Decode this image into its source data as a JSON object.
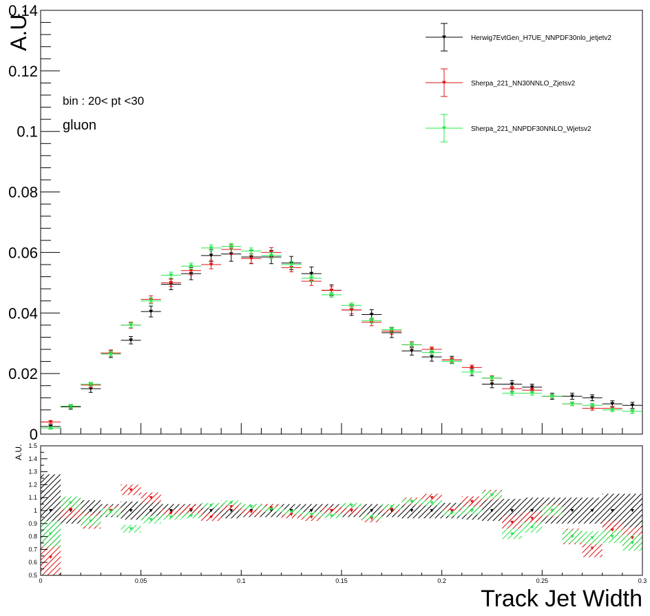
{
  "chart_data": [
    {
      "type": "scatter",
      "title": "",
      "xlabel": "",
      "ylabel": "A.U.",
      "xlim": [
        0,
        0.3
      ],
      "ylim": [
        0,
        0.14
      ],
      "yticks": [
        0.02,
        0.04,
        0.06,
        0.08,
        0.1,
        0.12,
        0.14
      ],
      "ytick_labels": [
        "0.02",
        "0.04",
        "0.06",
        "0.08",
        "0.1",
        "0.12",
        "0.14"
      ],
      "yzero_label": "0",
      "grid": false,
      "legend_placement": "top-right",
      "annotations": [
        "bin : 20< pt <30",
        "gluon"
      ],
      "x_bin_centers": [
        0.005,
        0.015,
        0.025,
        0.035,
        0.045,
        0.055,
        0.065,
        0.075,
        0.085,
        0.095,
        0.105,
        0.115,
        0.125,
        0.135,
        0.145,
        0.155,
        0.165,
        0.175,
        0.185,
        0.195,
        0.205,
        0.215,
        0.225,
        0.235,
        0.245,
        0.255,
        0.265,
        0.275,
        0.285,
        0.295
      ],
      "bin_half_width": 0.005,
      "series": [
        {
          "name": "Herwig7EvtGen_H7UE_NNPDF30nlo_jetjetv2",
          "color": "#000000",
          "values": [
            0.0025,
            0.009,
            0.015,
            0.0265,
            0.031,
            0.0405,
            0.0495,
            0.053,
            0.059,
            0.0595,
            0.0585,
            0.0585,
            0.0565,
            0.053,
            0.0475,
            0.041,
            0.0395,
            0.0335,
            0.0275,
            0.0255,
            0.0245,
            0.0205,
            0.0165,
            0.0165,
            0.0155,
            0.0125,
            0.0125,
            0.012,
            0.01,
            0.0095
          ],
          "errors": [
            0.0006,
            0.0008,
            0.0012,
            0.0012,
            0.0012,
            0.0018,
            0.0018,
            0.002,
            0.002,
            0.0024,
            0.0022,
            0.0022,
            0.0022,
            0.0022,
            0.0018,
            0.0018,
            0.0016,
            0.0016,
            0.0014,
            0.0014,
            0.0012,
            0.0012,
            0.0012,
            0.0012,
            0.001,
            0.001,
            0.001,
            0.001,
            0.001,
            0.001
          ]
        },
        {
          "name": "Sherpa_221_NN30NNLO_Zjetsv2",
          "color": "#e01010",
          "values": [
            0.004,
            0.0092,
            0.0162,
            0.0268,
            0.036,
            0.0445,
            0.05,
            0.054,
            0.056,
            0.061,
            0.058,
            0.06,
            0.055,
            0.0505,
            0.0475,
            0.041,
            0.037,
            0.034,
            0.0295,
            0.028,
            0.0245,
            0.022,
            0.0185,
            0.015,
            0.0145,
            0.0125,
            0.01,
            0.0085,
            0.0085,
            0.0075
          ],
          "errors": [
            0.0005,
            0.0006,
            0.0008,
            0.001,
            0.001,
            0.0012,
            0.0012,
            0.0014,
            0.0014,
            0.0016,
            0.0016,
            0.0016,
            0.0014,
            0.0014,
            0.0012,
            0.0012,
            0.0012,
            0.001,
            0.001,
            0.0008,
            0.0008,
            0.0008,
            0.0008,
            0.0008,
            0.0006,
            0.0006,
            0.0006,
            0.0006,
            0.0006,
            0.0006
          ]
        },
        {
          "name": "Sherpa_221_NNPDF30NNLO_Wjetsv2",
          "color": "#22e84a",
          "values": [
            0.002,
            0.0092,
            0.0165,
            0.0265,
            0.036,
            0.044,
            0.0525,
            0.0555,
            0.0615,
            0.062,
            0.0605,
            0.059,
            0.056,
            0.0515,
            0.046,
            0.0425,
            0.0375,
            0.0345,
            0.0295,
            0.027,
            0.024,
            0.0205,
            0.0185,
            0.0135,
            0.0135,
            0.0125,
            0.01,
            0.0095,
            0.008,
            0.0075
          ],
          "errors": [
            0.0004,
            0.0006,
            0.0006,
            0.0008,
            0.0008,
            0.001,
            0.001,
            0.001,
            0.001,
            0.001,
            0.001,
            0.001,
            0.001,
            0.001,
            0.0008,
            0.0008,
            0.0008,
            0.0008,
            0.0008,
            0.0008,
            0.0006,
            0.0006,
            0.0006,
            0.0006,
            0.0006,
            0.0006,
            0.0006,
            0.0006,
            0.0006,
            0.0006
          ]
        }
      ]
    },
    {
      "type": "scatter",
      "title": "",
      "xlabel": "Track Jet Width",
      "ylabel": "A.U.",
      "xlim": [
        0,
        0.3
      ],
      "ylim": [
        0.5,
        1.5
      ],
      "xticks": [
        0,
        0.05,
        0.1,
        0.15,
        0.2,
        0.25,
        0.3
      ],
      "xtick_labels": [
        "0",
        "0.05",
        "0.1",
        "0.15",
        "0.2",
        "0.25",
        "0.3"
      ],
      "yticks": [
        0.5,
        0.6,
        0.7,
        0.8,
        0.9,
        1,
        1.1,
        1.2,
        1.3,
        1.4,
        1.5
      ],
      "ytick_labels": [
        "0.5",
        "0.6",
        "0.7",
        "0.8",
        "0.9",
        "1",
        "1.1",
        "1.2",
        "1.3",
        "1.4",
        "1.5"
      ],
      "grid": false,
      "series": [
        {
          "name": "Herwig7EvtGen_H7UE_NNPDF30nlo_jetjetv2",
          "color": "#000000",
          "values": [
            1,
            1,
            1,
            1,
            1,
            1,
            1,
            1,
            1,
            1,
            1,
            1,
            1,
            1,
            1,
            1,
            1,
            1,
            1,
            1,
            1,
            1,
            1,
            1,
            1,
            1,
            1,
            1,
            1,
            1
          ],
          "band": [
            0.28,
            0.1,
            0.08,
            0.05,
            0.07,
            0.07,
            0.05,
            0.05,
            0.05,
            0.06,
            0.05,
            0.05,
            0.05,
            0.05,
            0.05,
            0.05,
            0.05,
            0.05,
            0.06,
            0.06,
            0.06,
            0.07,
            0.08,
            0.09,
            0.1,
            0.1,
            0.1,
            0.1,
            0.13,
            0.13
          ]
        },
        {
          "name": "Sherpa_221_NN30NNLO_Zjetsv2",
          "color": "#e01010",
          "values": [
            0.64,
            1.01,
            0.92,
            1.0,
            1.16,
            1.1,
            0.98,
            1.01,
            0.95,
            1.03,
            0.99,
            1.02,
            0.97,
            0.95,
            1.0,
            1.0,
            0.94,
            1.01,
            1.07,
            1.1,
            1.0,
            1.07,
            1.12,
            0.91,
            0.94,
            1.0,
            0.8,
            0.71,
            0.85,
            0.79
          ],
          "band": [
            0.14,
            0.07,
            0.06,
            0.04,
            0.04,
            0.04,
            0.03,
            0.03,
            0.03,
            0.03,
            0.03,
            0.03,
            0.03,
            0.03,
            0.03,
            0.03,
            0.03,
            0.03,
            0.03,
            0.03,
            0.03,
            0.04,
            0.04,
            0.05,
            0.05,
            0.05,
            0.06,
            0.07,
            0.07,
            0.08
          ]
        },
        {
          "name": "Sherpa_221_NNPDF30NNLO_Wjetsv2",
          "color": "#22e84a",
          "values": [
            0.82,
            1.06,
            0.92,
            0.99,
            0.86,
            0.93,
            0.95,
            0.96,
            1.04,
            1.06,
            1.03,
            1.01,
            0.99,
            0.97,
            0.96,
            1.04,
            0.95,
            1.03,
            1.07,
            1.06,
            0.98,
            1.0,
            1.12,
            0.82,
            0.87,
            1.0,
            0.8,
            0.79,
            0.8,
            0.75
          ],
          "band": [
            0.1,
            0.05,
            0.04,
            0.03,
            0.03,
            0.03,
            0.02,
            0.02,
            0.02,
            0.02,
            0.02,
            0.02,
            0.02,
            0.02,
            0.02,
            0.02,
            0.02,
            0.02,
            0.02,
            0.02,
            0.02,
            0.03,
            0.03,
            0.04,
            0.04,
            0.04,
            0.05,
            0.05,
            0.05,
            0.06
          ]
        }
      ]
    }
  ]
}
